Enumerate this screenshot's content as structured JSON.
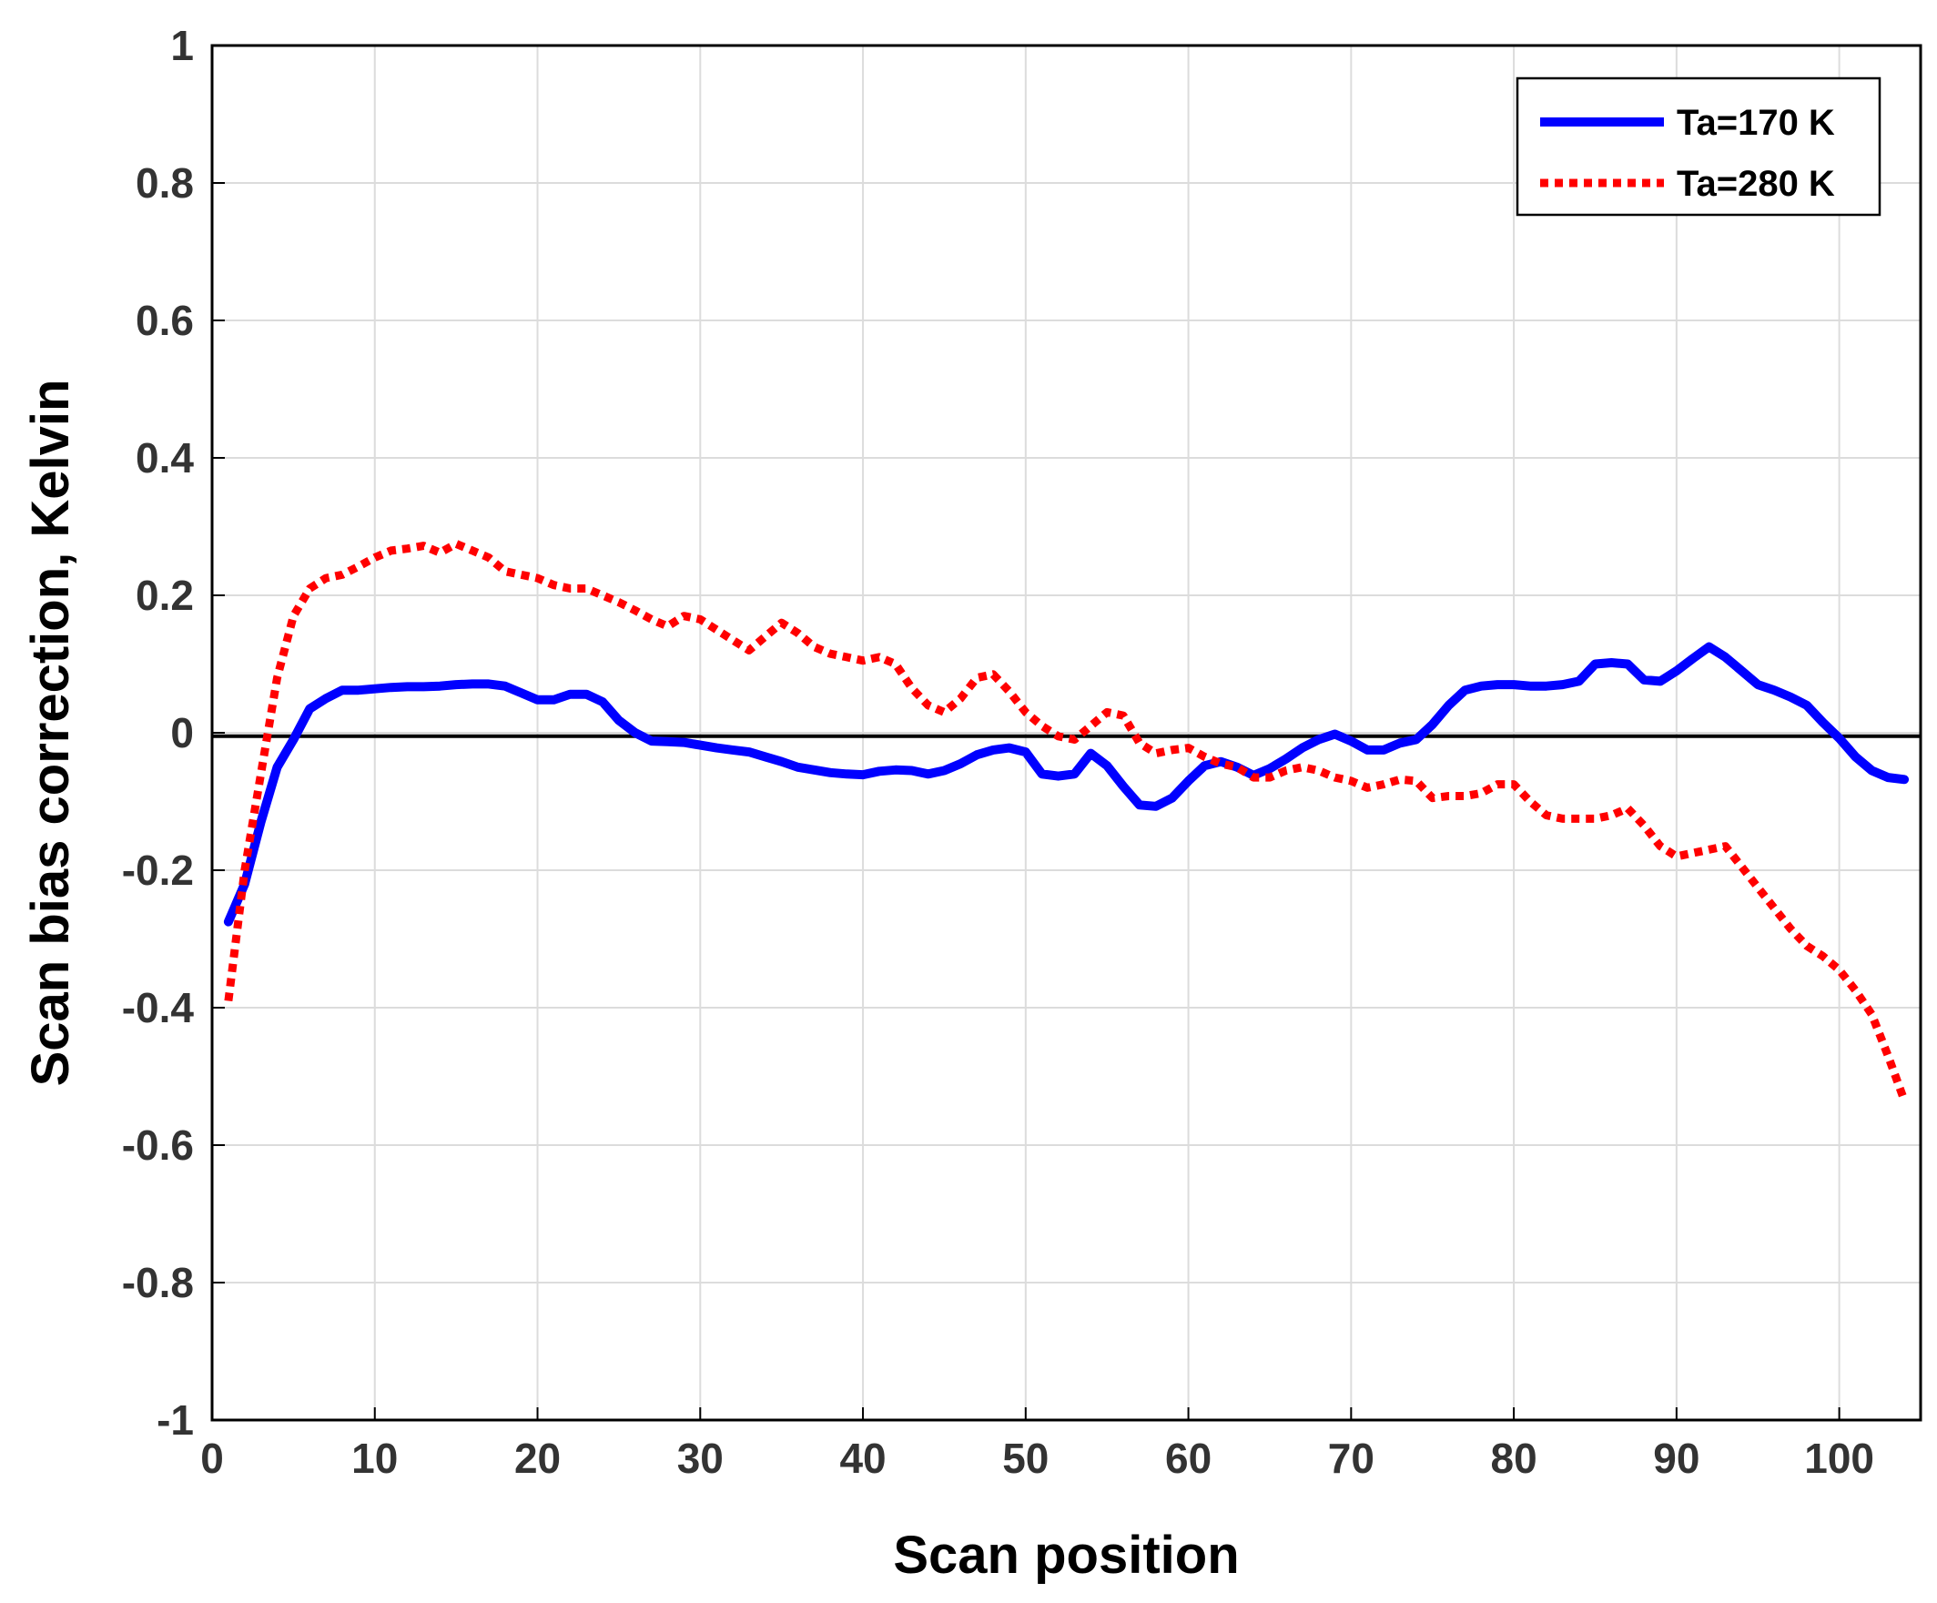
{
  "chart_data": {
    "type": "line",
    "xlabel": "Scan position",
    "ylabel": "Scan bias correction, Kelvin",
    "xlim": [
      0,
      105
    ],
    "ylim": [
      -1,
      1
    ],
    "xticks": [
      "0",
      "10",
      "20",
      "30",
      "40",
      "50",
      "60",
      "70",
      "80",
      "90",
      "100"
    ],
    "yticks": [
      "-1",
      "-0.8",
      "-0.6",
      "-0.4",
      "-0.2",
      "0",
      "0.2",
      "0.4",
      "0.6",
      "0.8",
      "1"
    ],
    "grid": true,
    "legend_position": "top-right",
    "reference_line": {
      "y": -0.005,
      "color": "#000000"
    },
    "series": [
      {
        "name": "Ta=170 K",
        "color": "#0000ff",
        "style": "solid",
        "x": [
          1,
          2,
          3,
          4,
          5,
          6,
          7,
          8,
          9,
          10,
          11,
          12,
          13,
          14,
          15,
          16,
          17,
          18,
          19,
          20,
          21,
          22,
          23,
          24,
          25,
          26,
          27,
          28,
          29,
          30,
          31,
          32,
          33,
          34,
          35,
          36,
          37,
          38,
          39,
          40,
          41,
          42,
          43,
          44,
          45,
          46,
          47,
          48,
          49,
          50,
          51,
          52,
          53,
          54,
          55,
          56,
          57,
          58,
          59,
          60,
          61,
          62,
          63,
          64,
          65,
          66,
          67,
          68,
          69,
          70,
          71,
          72,
          73,
          74,
          75,
          76,
          77,
          78,
          79,
          80,
          81,
          82,
          83,
          84,
          85,
          86,
          87,
          88,
          89,
          90,
          91,
          92,
          93,
          94,
          95,
          96,
          97,
          98,
          99,
          100,
          101,
          102,
          103,
          104
        ],
        "y": [
          -0.275,
          -0.22,
          -0.13,
          -0.05,
          -0.01,
          0.035,
          0.05,
          0.062,
          0.062,
          0.064,
          0.066,
          0.067,
          0.067,
          0.068,
          0.07,
          0.071,
          0.071,
          0.068,
          0.058,
          0.048,
          0.048,
          0.056,
          0.056,
          0.045,
          0.018,
          0.0,
          -0.012,
          -0.013,
          -0.014,
          -0.018,
          -0.022,
          -0.025,
          -0.028,
          -0.035,
          -0.042,
          -0.05,
          -0.054,
          -0.058,
          -0.06,
          -0.061,
          -0.056,
          -0.054,
          -0.055,
          -0.06,
          -0.055,
          -0.045,
          -0.032,
          -0.025,
          -0.022,
          -0.028,
          -0.06,
          -0.063,
          -0.06,
          -0.03,
          -0.048,
          -0.078,
          -0.105,
          -0.107,
          -0.095,
          -0.07,
          -0.048,
          -0.042,
          -0.05,
          -0.062,
          -0.052,
          -0.038,
          -0.022,
          -0.01,
          -0.002,
          -0.012,
          -0.025,
          -0.025,
          -0.015,
          -0.01,
          0.012,
          0.04,
          0.062,
          0.068,
          0.07,
          0.07,
          0.068,
          0.068,
          0.07,
          0.075,
          0.1,
          0.102,
          0.1,
          0.077,
          0.075,
          0.09,
          0.108,
          0.125,
          0.11,
          0.09,
          0.07,
          0.062,
          0.052,
          0.04,
          0.015,
          -0.008,
          -0.035,
          -0.055,
          -0.065,
          -0.068
        ]
      },
      {
        "name": "Ta=280 K",
        "color": "#ff0000",
        "style": "dotted",
        "x": [
          1,
          2,
          3,
          4,
          5,
          6,
          7,
          8,
          9,
          10,
          11,
          12,
          13,
          14,
          15,
          16,
          17,
          18,
          19,
          20,
          21,
          22,
          23,
          24,
          25,
          26,
          27,
          28,
          29,
          30,
          31,
          32,
          33,
          34,
          35,
          36,
          37,
          38,
          39,
          40,
          41,
          42,
          43,
          44,
          45,
          46,
          47,
          48,
          49,
          50,
          51,
          52,
          53,
          54,
          55,
          56,
          57,
          58,
          59,
          60,
          61,
          62,
          63,
          64,
          65,
          66,
          67,
          68,
          69,
          70,
          71,
          72,
          73,
          74,
          75,
          76,
          77,
          78,
          79,
          80,
          81,
          82,
          83,
          84,
          85,
          86,
          87,
          88,
          89,
          90,
          91,
          92,
          93,
          94,
          95,
          96,
          97,
          98,
          99,
          100,
          101,
          102,
          103,
          104
        ],
        "y": [
          -0.39,
          -0.2,
          -0.06,
          0.08,
          0.17,
          0.21,
          0.225,
          0.23,
          0.242,
          0.255,
          0.265,
          0.268,
          0.272,
          0.262,
          0.275,
          0.265,
          0.255,
          0.235,
          0.23,
          0.225,
          0.215,
          0.21,
          0.21,
          0.2,
          0.19,
          0.178,
          0.165,
          0.155,
          0.17,
          0.165,
          0.15,
          0.135,
          0.12,
          0.14,
          0.16,
          0.145,
          0.125,
          0.115,
          0.11,
          0.105,
          0.11,
          0.1,
          0.065,
          0.04,
          0.03,
          0.05,
          0.08,
          0.085,
          0.06,
          0.03,
          0.01,
          -0.005,
          -0.01,
          0.01,
          0.03,
          0.025,
          -0.015,
          -0.03,
          -0.025,
          -0.022,
          -0.035,
          -0.045,
          -0.05,
          -0.065,
          -0.065,
          -0.055,
          -0.05,
          -0.055,
          -0.065,
          -0.07,
          -0.08,
          -0.075,
          -0.068,
          -0.07,
          -0.095,
          -0.092,
          -0.092,
          -0.088,
          -0.075,
          -0.075,
          -0.1,
          -0.12,
          -0.125,
          -0.125,
          -0.125,
          -0.12,
          -0.11,
          -0.135,
          -0.165,
          -0.18,
          -0.175,
          -0.17,
          -0.165,
          -0.195,
          -0.225,
          -0.255,
          -0.285,
          -0.31,
          -0.325,
          -0.345,
          -0.375,
          -0.41,
          -0.47,
          -0.535
        ]
      }
    ]
  }
}
